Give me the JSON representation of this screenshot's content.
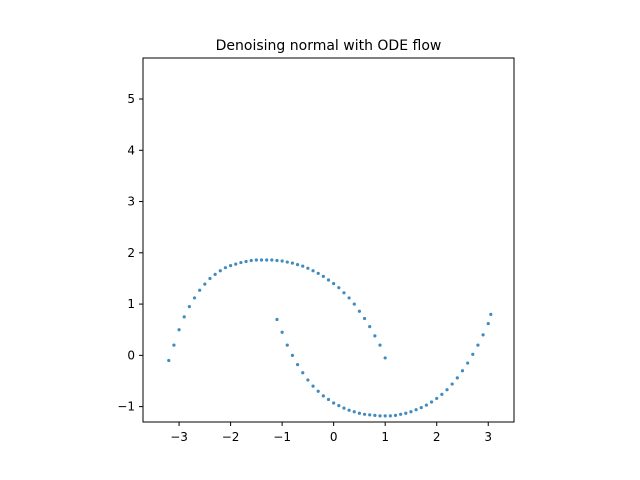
{
  "chart_data": {
    "type": "scatter",
    "title": "Denoising normal with ODE flow",
    "xlabel": "",
    "ylabel": "",
    "xlim": [
      -3.7,
      3.5
    ],
    "ylim": [
      -1.3,
      5.8
    ],
    "xticks": [
      -3,
      -2,
      -1,
      0,
      1,
      2,
      3
    ],
    "yticks": [
      -1,
      0,
      1,
      2,
      3,
      4,
      5
    ],
    "xtick_labels": [
      "−3",
      "−2",
      "−1",
      "0",
      "1",
      "2",
      "3"
    ],
    "ytick_labels": [
      "−1",
      "0",
      "1",
      "2",
      "3",
      "4",
      "5"
    ],
    "grid": false,
    "legend": "none",
    "series": [
      {
        "color": "#1f77b4",
        "marker_size": 0.6,
        "description_points": "two interleaving half-moon arcs (denoised samples)",
        "x": [
          -3.2,
          -3.1,
          -3.0,
          -2.9,
          -2.8,
          -2.7,
          -2.6,
          -2.5,
          -2.4,
          -2.3,
          -2.2,
          -2.1,
          -2.0,
          -1.9,
          -1.8,
          -1.7,
          -1.6,
          -1.5,
          -1.4,
          -1.3,
          -1.2,
          -1.1,
          -1.0,
          -0.9,
          -0.8,
          -0.7,
          -0.6,
          -0.5,
          -0.4,
          -0.3,
          -0.2,
          -0.1,
          0.0,
          0.1,
          0.2,
          0.3,
          0.4,
          0.5,
          0.6,
          0.7,
          0.8,
          0.9,
          1.0,
          -1.1,
          -1.0,
          -0.9,
          -0.8,
          -0.7,
          -0.6,
          -0.5,
          -0.4,
          -0.3,
          -0.2,
          -0.1,
          0.0,
          0.1,
          0.2,
          0.3,
          0.4,
          0.5,
          0.6,
          0.7,
          0.8,
          0.9,
          1.0,
          1.1,
          1.2,
          1.3,
          1.4,
          1.5,
          1.6,
          1.7,
          1.8,
          1.9,
          2.0,
          2.1,
          2.2,
          2.3,
          2.4,
          2.5,
          2.6,
          2.7,
          2.8,
          2.9,
          3.0,
          3.05
        ],
        "y": [
          -0.1,
          0.2,
          0.5,
          0.75,
          0.95,
          1.12,
          1.27,
          1.39,
          1.5,
          1.58,
          1.65,
          1.71,
          1.75,
          1.78,
          1.81,
          1.83,
          1.85,
          1.86,
          1.86,
          1.86,
          1.86,
          1.85,
          1.84,
          1.82,
          1.8,
          1.77,
          1.74,
          1.7,
          1.65,
          1.6,
          1.54,
          1.47,
          1.4,
          1.32,
          1.22,
          1.12,
          1.0,
          0.86,
          0.72,
          0.56,
          0.38,
          0.2,
          -0.05,
          0.7,
          0.45,
          0.2,
          0.0,
          -0.18,
          -0.34,
          -0.48,
          -0.6,
          -0.7,
          -0.79,
          -0.86,
          -0.93,
          -0.98,
          -1.03,
          -1.07,
          -1.1,
          -1.13,
          -1.15,
          -1.16,
          -1.17,
          -1.18,
          -1.18,
          -1.18,
          -1.17,
          -1.15,
          -1.13,
          -1.1,
          -1.06,
          -1.02,
          -0.97,
          -0.91,
          -0.84,
          -0.76,
          -0.67,
          -0.56,
          -0.44,
          -0.3,
          -0.15,
          0.02,
          0.2,
          0.4,
          0.62,
          0.8
        ]
      }
    ]
  }
}
